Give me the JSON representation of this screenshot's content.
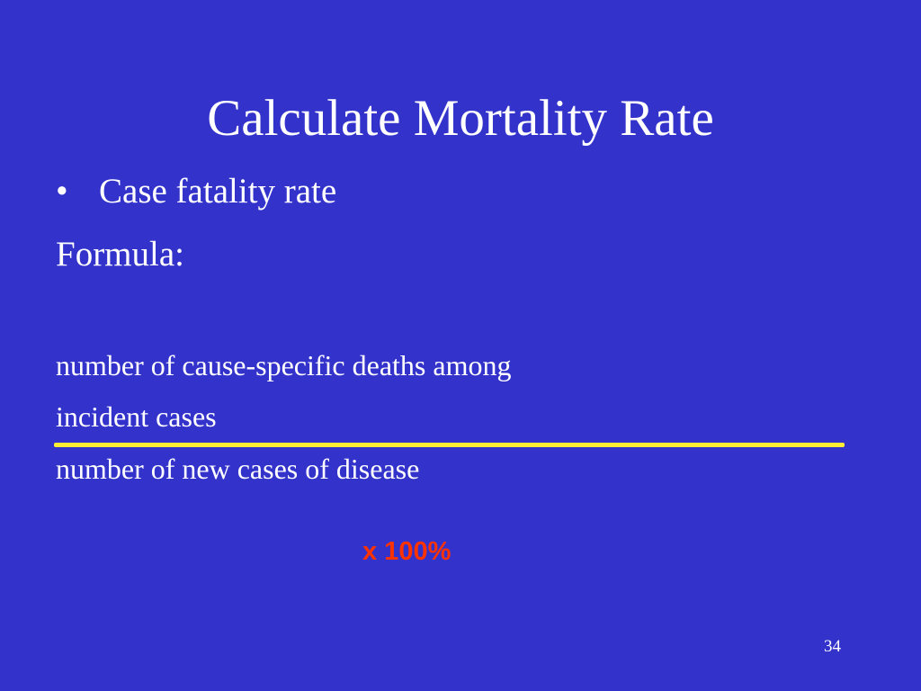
{
  "slide": {
    "title": "Calculate Mortality Rate",
    "bullets": [
      {
        "marker": "•",
        "text": "Case fatality rate"
      }
    ],
    "formula_label": "Formula:",
    "formula": {
      "numerator_lines": [
        "number of cause-specific deaths among",
        "incident cases"
      ],
      "denominator": "number of new cases of disease",
      "multiplier": "x 100%"
    },
    "page_number": "34"
  },
  "colors": {
    "background": "#3333cc",
    "text": "#ffffff",
    "fraction_bar": "#ffee33",
    "multiplier": "#ff3300"
  }
}
